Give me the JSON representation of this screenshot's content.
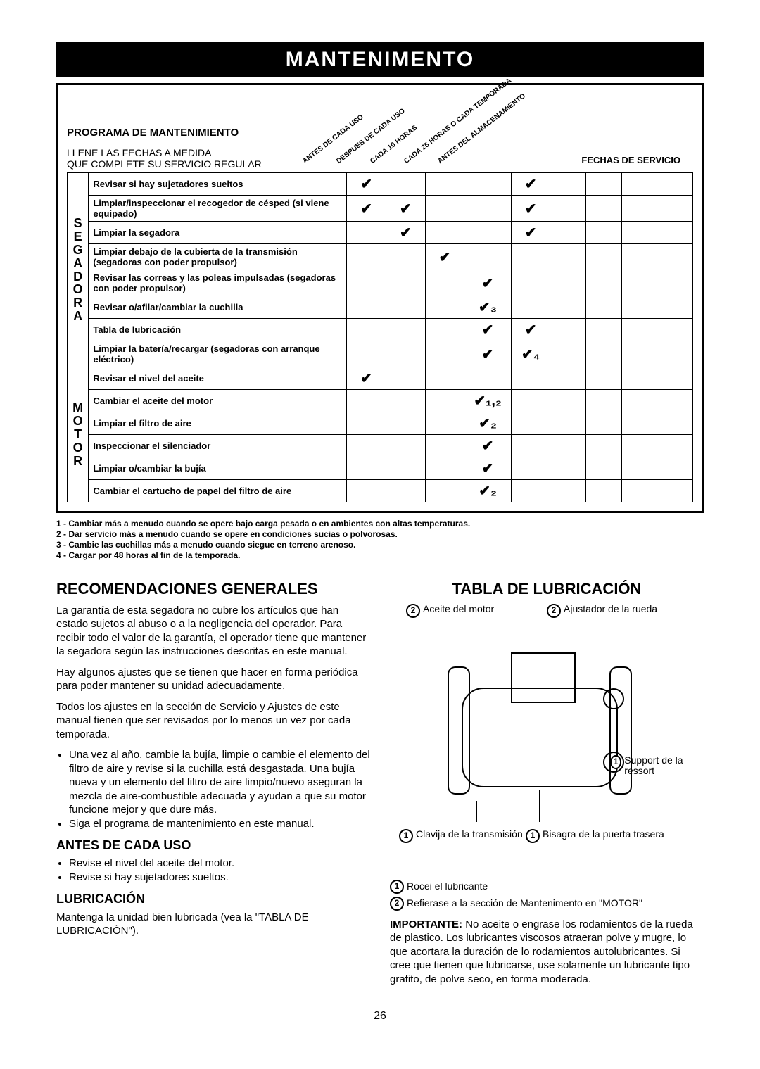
{
  "title": "MANTENIMENTO",
  "schedule": {
    "heading": "PROGRAMA DE MANTENIMIENTO",
    "subheading1": "LLENE LAS FECHAS A MEDIDA",
    "subheading2": "QUE COMPLETE SU SERVICIO REGULAR",
    "col_labels": [
      "ANTES DE CADA USO",
      "DESPUES DE CADA USO",
      "CADA 10 HORAS",
      "CADA 25 HORAS O CADA TEMPORADA",
      "ANTES DEL ALMACENAMIENTO"
    ],
    "service_dates_label": "FECHAS DE SERVICIO",
    "groups": [
      {
        "label": "S\nE\nG\nA\nD\nO\nR\nA",
        "rows": [
          {
            "desc": "Revisar si hay sujetadores sueltos",
            "marks": [
              "✔",
              "",
              "",
              "",
              "✔"
            ]
          },
          {
            "desc": "Limpiar/inspeccionar el recogedor de césped (si viene equipado)",
            "marks": [
              "✔",
              "✔",
              "",
              "",
              "✔"
            ]
          },
          {
            "desc": "Limpiar la segadora",
            "marks": [
              "",
              "✔",
              "",
              "",
              "✔"
            ]
          },
          {
            "desc": "Limpiar debajo de la cubierta de la transmisión (segadoras con poder propulsor)",
            "marks": [
              "",
              "",
              "✔",
              "",
              ""
            ]
          },
          {
            "desc": "Revisar las correas y las poleas impulsadas (segadoras con poder propulsor)",
            "marks": [
              "",
              "",
              "",
              "✔",
              ""
            ]
          },
          {
            "desc": "Revisar o/afilar/cambiar la cuchilla",
            "marks": [
              "",
              "",
              "",
              "✔₃",
              ""
            ]
          },
          {
            "desc": "Tabla de lubricación",
            "marks": [
              "",
              "",
              "",
              "✔",
              "✔"
            ]
          },
          {
            "desc": "Limpiar la batería/recargar (segadoras con arranque eléctrico)",
            "marks": [
              "",
              "",
              "",
              "✔",
              "✔₄"
            ]
          }
        ]
      },
      {
        "label": "M\nO\nT\nO\nR",
        "rows": [
          {
            "desc": "Revisar el nivel del aceite",
            "marks": [
              "✔",
              "",
              "",
              "",
              ""
            ]
          },
          {
            "desc": "Cambiar el aceite del motor",
            "marks": [
              "",
              "",
              "",
              "✔₁,₂",
              ""
            ]
          },
          {
            "desc": "Limpiar el filtro de aire",
            "marks": [
              "",
              "",
              "",
              "✔₂",
              ""
            ]
          },
          {
            "desc": "Inspeccionar el silenciador",
            "marks": [
              "",
              "",
              "",
              "✔",
              ""
            ]
          },
          {
            "desc": "Limpiar o/cambiar la bujía",
            "marks": [
              "",
              "",
              "",
              "✔",
              ""
            ]
          },
          {
            "desc": "Cambiar el cartucho de papel del filtro de aire",
            "marks": [
              "",
              "",
              "",
              "✔₂",
              ""
            ]
          }
        ]
      }
    ]
  },
  "footnotes": [
    "1 - Cambiar más a menudo cuando se opere bajo carga pesada o en ambientes con altas temperaturas.",
    "2 - Dar servicio más a menudo cuando se opere en condiciones sucias o polvorosas.",
    "3 - Cambie las cuchillas más a menudo cuando siegue en terreno arenoso.",
    "4 - Cargar por 48 horas al fin de la temporada."
  ],
  "left_col": {
    "h_rec": "RECOMENDACIONES GENERALES",
    "p1": "La garantía de esta segadora no cubre los artículos que han estado sujetos al abuso o a la negligencia del operador. Para recibir todo el valor de la garantía, el operador tiene que mantener la segadora según las instrucciones descritas en este manual.",
    "p2": "Hay algunos ajustes que se tienen que hacer en forma periódica para poder mantener su unidad adecuadamente.",
    "p3": "Todos los ajustes en la sección de Servicio y Ajustes de este manual tienen que ser revisados por lo menos un vez por cada temporada.",
    "b1": "Una vez al año, cambie la bujía, limpie o cambie el elemento del filtro de aire y revise si la cuchilla está desgastada. Una bujía nueva y un elemento del filtro de aire limpio/nuevo aseguran la mezcla de aire-combustible adecuada y ayudan a que su motor funcione mejor y que dure más.",
    "b2": "Siga el programa de mantenimiento en este manual.",
    "h_antes": "ANTES DE CADA USO",
    "b3": "Revise el nivel del aceite del motor.",
    "b4": "Revise si hay sujetadores sueltos.",
    "h_lub": "LUBRICACIÓN",
    "p_lub": "Mantenga la unidad bien lubricada (vea la \"TABLA DE LUBRICACIÓN\")."
  },
  "right_col": {
    "h_tabla": "TABLA DE LUBRICACIÓN",
    "labels": {
      "aceite": "Aceite del motor",
      "ajustador": "Ajustador de la rueda",
      "support": "Support de la ressort",
      "clavija": "Clavija de la transmisión",
      "bisagra": "Bisagra de la puerta trasera"
    },
    "legend1": "Rocei el lubricante",
    "legend2": "Refierase a la sección de Mantenimento en \"MOTOR\"",
    "importante_label": "IMPORTANTE:",
    "importante": " No aceite o engrase los rodamientos de la rueda de plastico. Los lubricantes viscosos atraeran polve y mugre, lo que acortara la duración de lo rodamientos autolubricantes. Si cree que tienen que lubricarse, use solamente un lubricante tipo grafito, de polve seco, en forma moderada."
  },
  "page_number": "26"
}
